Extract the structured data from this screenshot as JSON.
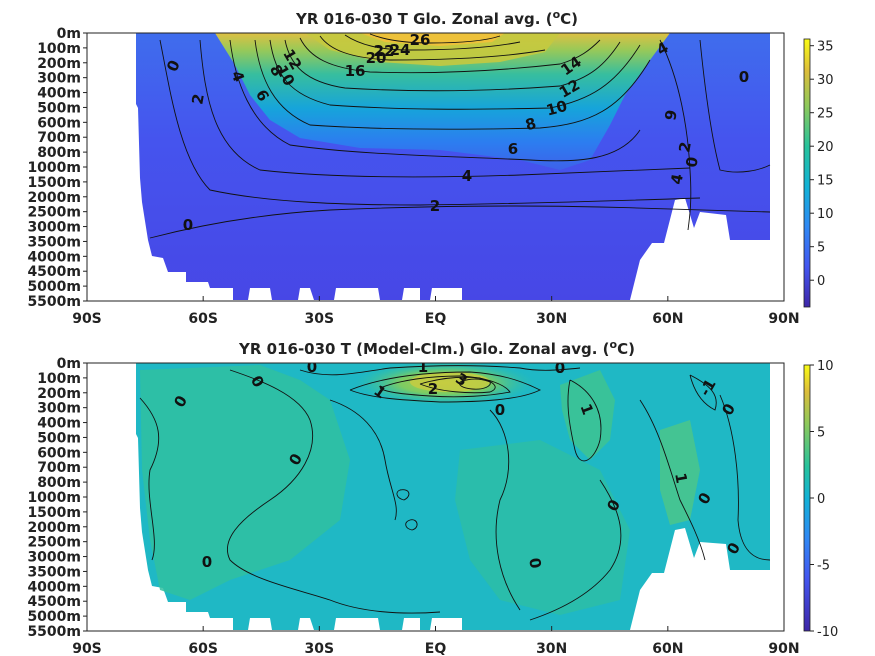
{
  "panels": [
    {
      "title_main": "YR 016-030 T Glo. Zonal avg. (",
      "title_sup": "o",
      "title_end": "C)",
      "colorbar_ticks": [
        "35",
        "30",
        "25",
        "20",
        "15",
        "10",
        "5",
        "0"
      ],
      "colorbar_values": [
        35,
        30,
        25,
        20,
        15,
        10,
        5,
        0
      ],
      "colorbar_range": [
        -4,
        36
      ],
      "contour_labels": [
        "0",
        "4",
        "2",
        "0",
        "12",
        "10",
        "8",
        "6",
        "16",
        "20",
        "22",
        "24",
        "26",
        "4",
        "14",
        "12",
        "10",
        "8",
        "6",
        "4",
        "2",
        "0",
        "9",
        "2",
        "0",
        "4"
      ]
    },
    {
      "title_main": "YR 016-030 T (Model-Clm.) Glo. Zonal avg. (",
      "title_sup": "o",
      "title_end": "C)",
      "colorbar_ticks": [
        "10",
        "5",
        "0",
        "-5",
        "-10"
      ],
      "colorbar_values": [
        10,
        5,
        0,
        -5,
        -10
      ],
      "colorbar_range": [
        -10,
        10
      ],
      "contour_labels": [
        "0",
        "1",
        "0",
        "0",
        "0",
        "1",
        "2",
        "3",
        "0",
        "0",
        "1",
        "-1",
        "0",
        "1",
        "0",
        "0",
        "0",
        "0",
        "0"
      ]
    }
  ],
  "axes": {
    "x_ticks": [
      "90S",
      "60S",
      "30S",
      "EQ",
      "30N",
      "60N",
      "90N"
    ],
    "y_ticks": [
      "0m",
      "100m",
      "200m",
      "300m",
      "400m",
      "500m",
      "600m",
      "700m",
      "800m",
      "1000m",
      "1500m",
      "2000m",
      "2500m",
      "3000m",
      "3500m",
      "4000m",
      "4500m",
      "5000m",
      "5500m"
    ]
  },
  "chart_data": [
    {
      "type": "heatmap",
      "title": "YR 016-030 T Glo. Zonal avg. (oC)",
      "x_categories": [
        "90S",
        "60S",
        "30S",
        "EQ",
        "30N",
        "60N",
        "90N"
      ],
      "y_categories": [
        "0m",
        "100m",
        "200m",
        "300m",
        "400m",
        "500m",
        "600m",
        "700m",
        "800m",
        "1000m",
        "1500m",
        "2000m",
        "2500m",
        "3000m",
        "3500m",
        "4000m",
        "4500m",
        "5000m",
        "5500m"
      ],
      "contour_levels": [
        0,
        2,
        4,
        6,
        8,
        10,
        12,
        14,
        16,
        18,
        20,
        22,
        24,
        26
      ],
      "surface_max_approx": 27,
      "colorbar_range": [
        -4,
        36
      ],
      "colorbar_ticks": [
        0,
        5,
        10,
        15,
        20,
        25,
        30,
        35
      ]
    },
    {
      "type": "heatmap",
      "title": "YR 016-030 T (Model-Clm.) Glo. Zonal avg. (oC)",
      "x_categories": [
        "90S",
        "60S",
        "30S",
        "EQ",
        "30N",
        "60N",
        "90N"
      ],
      "y_categories": [
        "0m",
        "100m",
        "200m",
        "300m",
        "400m",
        "500m",
        "600m",
        "700m",
        "800m",
        "1000m",
        "1500m",
        "2000m",
        "2500m",
        "3000m",
        "3500m",
        "4000m",
        "4500m",
        "5000m",
        "5500m"
      ],
      "contour_levels": [
        -1,
        0,
        1,
        2,
        3
      ],
      "colorbar_range": [
        -10,
        10
      ],
      "colorbar_ticks": [
        -10,
        -5,
        0,
        5,
        10
      ]
    }
  ],
  "colors": {
    "background": "#ffffff",
    "land": "#ffffff",
    "text": "#222222"
  }
}
